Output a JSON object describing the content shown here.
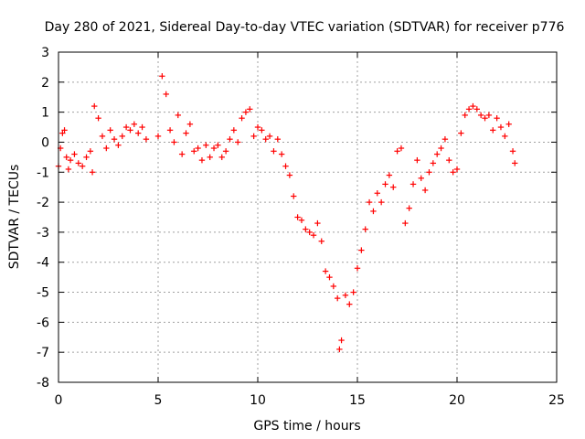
{
  "chart_data": {
    "type": "scatter",
    "title": "Day 280 of 2021, Sidereal Day-to-day VTEC variation (SDTVAR) for receiver p776",
    "xlabel": "GPS time / hours",
    "ylabel": "SDTVAR / TECUs",
    "xlim": [
      0,
      25
    ],
    "ylim": [
      -8,
      3
    ],
    "xticks": [
      0,
      5,
      10,
      15,
      20,
      25
    ],
    "yticks": [
      -8,
      -7,
      -6,
      -5,
      -4,
      -3,
      -2,
      -1,
      0,
      1,
      2,
      3
    ],
    "grid": true,
    "marker": "+",
    "color": "#ff0000",
    "series": [
      {
        "name": "p776",
        "x": [
          0.0,
          0.1,
          0.2,
          0.3,
          0.4,
          0.5,
          0.6,
          0.8,
          1.0,
          1.2,
          1.4,
          1.6,
          1.7,
          1.8,
          2.0,
          2.2,
          2.4,
          2.6,
          2.8,
          3.0,
          3.2,
          3.4,
          3.6,
          3.8,
          4.0,
          4.2,
          4.4,
          5.0,
          5.2,
          5.4,
          5.6,
          5.8,
          6.0,
          6.2,
          6.4,
          6.6,
          6.8,
          7.0,
          7.2,
          7.4,
          7.6,
          7.8,
          8.0,
          8.2,
          8.4,
          8.6,
          8.8,
          9.0,
          9.2,
          9.4,
          9.6,
          9.8,
          10.0,
          10.2,
          10.4,
          10.6,
          10.8,
          11.0,
          11.2,
          11.4,
          11.6,
          11.8,
          12.0,
          12.2,
          12.4,
          12.6,
          12.8,
          13.0,
          13.2,
          13.4,
          13.6,
          13.8,
          14.0,
          14.1,
          14.2,
          14.4,
          14.6,
          14.8,
          15.0,
          15.2,
          15.4,
          15.6,
          15.8,
          16.0,
          16.2,
          16.4,
          16.6,
          16.8,
          17.0,
          17.2,
          17.4,
          17.6,
          17.8,
          18.0,
          18.2,
          18.4,
          18.6,
          18.8,
          19.0,
          19.2,
          19.4,
          19.6,
          19.8,
          20.0,
          20.2,
          20.4,
          20.6,
          20.8,
          21.0,
          21.2,
          21.4,
          21.6,
          21.8,
          22.0,
          22.2,
          22.4,
          22.6,
          22.8,
          22.9
        ],
        "y": [
          -0.8,
          -0.2,
          0.3,
          0.4,
          -0.5,
          -0.9,
          -0.6,
          -0.4,
          -0.7,
          -0.8,
          -0.5,
          -0.3,
          -1.0,
          1.2,
          0.8,
          0.2,
          -0.2,
          0.4,
          0.1,
          -0.1,
          0.2,
          0.5,
          0.4,
          0.6,
          0.3,
          0.5,
          0.1,
          0.2,
          2.2,
          1.6,
          0.4,
          0.0,
          0.9,
          -0.4,
          0.3,
          0.6,
          -0.3,
          -0.2,
          -0.6,
          -0.1,
          -0.5,
          -0.2,
          -0.1,
          -0.5,
          -0.3,
          0.1,
          0.4,
          0.0,
          0.8,
          1.0,
          1.1,
          0.2,
          0.5,
          0.4,
          0.1,
          0.2,
          -0.3,
          0.1,
          -0.4,
          -0.8,
          -1.1,
          -1.8,
          -2.5,
          -2.6,
          -2.9,
          -3.0,
          -3.1,
          -2.7,
          -3.3,
          -4.3,
          -4.5,
          -4.8,
          -5.2,
          -6.9,
          -6.6,
          -5.1,
          -5.4,
          -5.0,
          -4.2,
          -3.6,
          -2.9,
          -2.0,
          -2.3,
          -1.7,
          -2.0,
          -1.4,
          -1.1,
          -1.5,
          -0.3,
          -0.2,
          -2.7,
          -2.2,
          -1.4,
          -0.6,
          -1.2,
          -1.6,
          -1.0,
          -0.7,
          -0.4,
          -0.2,
          0.1,
          -0.6,
          -1.0,
          -0.9,
          0.3,
          0.9,
          1.1,
          1.2,
          1.1,
          0.9,
          0.8,
          0.9,
          0.4,
          0.8,
          0.5,
          0.2,
          0.6,
          -0.3,
          -0.7
        ]
      }
    ]
  }
}
